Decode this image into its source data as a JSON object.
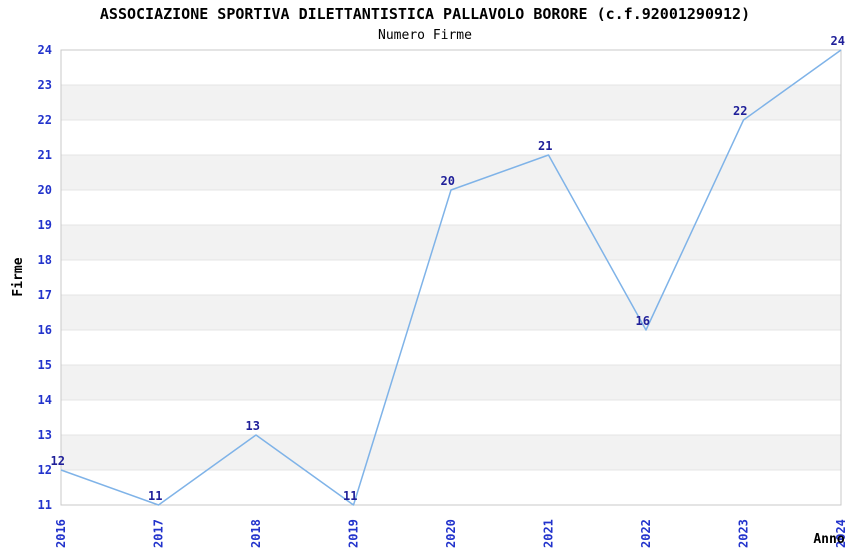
{
  "chart_data": {
    "type": "line",
    "title": "ASSOCIAZIONE SPORTIVA DILETTANTISTICA PALLAVOLO BORORE (c.f.92001290912)",
    "subtitle": "Numero Firme",
    "xlabel": "Anno",
    "ylabel": "Firme",
    "categories": [
      "2016",
      "2017",
      "2018",
      "2019",
      "2020",
      "2021",
      "2022",
      "2023",
      "2024"
    ],
    "series": [
      {
        "name": "Numero Firme",
        "values": [
          12,
          11,
          13,
          11,
          20,
          21,
          16,
          22,
          24
        ]
      }
    ],
    "ylim": [
      11,
      24
    ],
    "y_tick_step": 1,
    "grid": "horizontal gridlines with alternating shaded bands",
    "legend_position": "none",
    "point_labels_visible": true,
    "colors": {
      "line": "#7fb3e8",
      "tick_label": "#2233cc",
      "point_label": "#1f1f99",
      "band_fill": "#f2f2f2",
      "gridline": "#e4e4e4",
      "plot_border": "#c9c9c9",
      "title": "#1a1a1a",
      "subtitle": "#666666",
      "axis_title": "#000000",
      "background": "#ffffff"
    }
  }
}
